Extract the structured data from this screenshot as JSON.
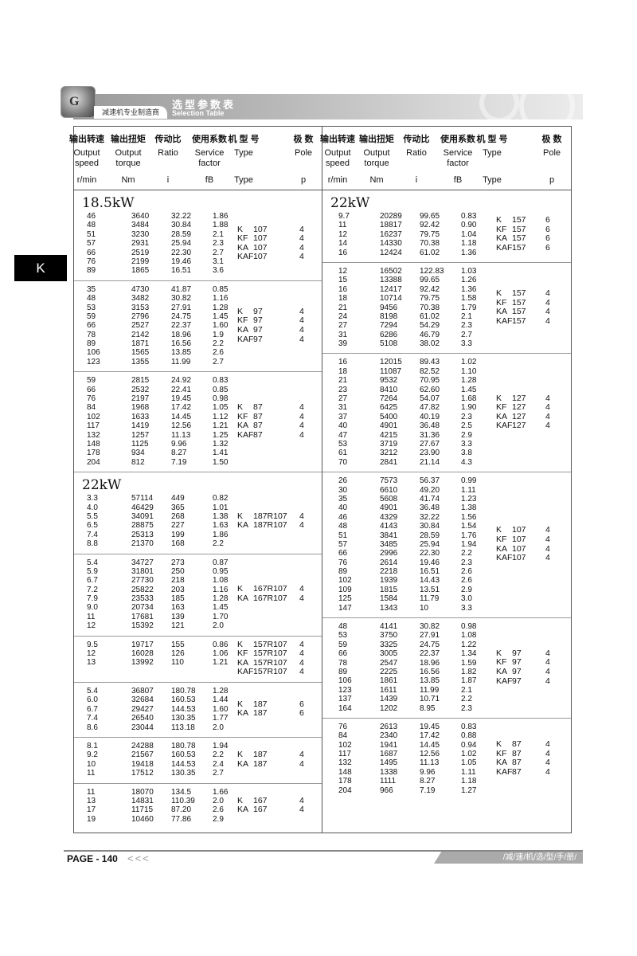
{
  "header": {
    "subtitle": "减速机专业制造商",
    "title_cn": "选型参数表",
    "title_en": "Selection Table",
    "logo_letter": "G"
  },
  "side_tab": "K",
  "columns": {
    "cn": [
      "输出转速",
      "输出扭矩",
      "传动比",
      "使用系数",
      "机 型 号",
      "极 数"
    ],
    "en": [
      "Output speed",
      "Output torque",
      "Ratio",
      "Service factor",
      "Type",
      "Pole"
    ],
    "units": [
      "r/min",
      "Nm",
      "i",
      "fB",
      "Type",
      "p"
    ]
  },
  "left": [
    {
      "title": "18.5kW",
      "rows": [
        [
          "46",
          "3640",
          "32.22",
          "1.86"
        ],
        [
          "48",
          "3484",
          "30.84",
          "1.88"
        ],
        [
          "51",
          "3230",
          "28.59",
          "2.1"
        ],
        [
          "57",
          "2931",
          "25.94",
          "2.3"
        ],
        [
          "66",
          "2519",
          "22.30",
          "2.7"
        ],
        [
          "76",
          "2199",
          "19.46",
          "3.1"
        ],
        [
          "89",
          "1865",
          "16.51",
          "3.6"
        ]
      ],
      "types": [
        [
          "K",
          "107",
          "4"
        ],
        [
          "KF",
          "107",
          "4"
        ],
        [
          "KA",
          "107",
          "4"
        ],
        [
          "KAF",
          "107",
          "4"
        ]
      ]
    },
    {
      "rows": [
        [
          "35",
          "4730",
          "41.87",
          "0.85"
        ],
        [
          "48",
          "3482",
          "30.82",
          "1.16"
        ],
        [
          "53",
          "3153",
          "27.91",
          "1.28"
        ],
        [
          "59",
          "2796",
          "24.75",
          "1.45"
        ],
        [
          "66",
          "2527",
          "22.37",
          "1.60"
        ],
        [
          "78",
          "2142",
          "18.96",
          "1.9"
        ],
        [
          "89",
          "1871",
          "16.56",
          "2.2"
        ],
        [
          "106",
          "1565",
          "13.85",
          "2.6"
        ],
        [
          "123",
          "1355",
          "11.99",
          "2.7"
        ]
      ],
      "types": [
        [
          "K",
          "97",
          "4"
        ],
        [
          "KF",
          "97",
          "4"
        ],
        [
          "KA",
          "97",
          "4"
        ],
        [
          "KAF",
          "97",
          "4"
        ]
      ]
    },
    {
      "rows": [
        [
          "59",
          "2815",
          "24.92",
          "0.83"
        ],
        [
          "66",
          "2532",
          "22.41",
          "0.85"
        ],
        [
          "76",
          "2197",
          "19.45",
          "0.98"
        ],
        [
          "84",
          "1968",
          "17.42",
          "1.05"
        ],
        [
          "102",
          "1633",
          "14.45",
          "1.12"
        ],
        [
          "117",
          "1419",
          "12.56",
          "1.21"
        ],
        [
          "132",
          "1257",
          "11.13",
          "1.25"
        ],
        [
          "148",
          "1125",
          "9.96",
          "1.32"
        ],
        [
          "178",
          "934",
          "8.27",
          "1.41"
        ],
        [
          "204",
          "812",
          "7.19",
          "1.50"
        ]
      ],
      "types": [
        [
          "K",
          "87",
          "4"
        ],
        [
          "KF",
          "87",
          "4"
        ],
        [
          "KA",
          "87",
          "4"
        ],
        [
          "KAF",
          "87",
          "4"
        ]
      ]
    },
    {
      "title": "22kW",
      "rows": [
        [
          "3.3",
          "57114",
          "449",
          "0.82"
        ],
        [
          "4.0",
          "46429",
          "365",
          "1.01"
        ],
        [
          "5.5",
          "34091",
          "268",
          "1.38"
        ],
        [
          "6.5",
          "28875",
          "227",
          "1.63"
        ],
        [
          "7.4",
          "25313",
          "199",
          "1.86"
        ],
        [
          "8.8",
          "21370",
          "168",
          "2.2"
        ]
      ],
      "types": [
        [
          "K",
          "187R107",
          "4"
        ],
        [
          "KA",
          "187R107",
          "4"
        ]
      ]
    },
    {
      "rows": [
        [
          "5.4",
          "34727",
          "273",
          "0.87"
        ],
        [
          "5.9",
          "31801",
          "250",
          "0.95"
        ],
        [
          "6.7",
          "27730",
          "218",
          "1.08"
        ],
        [
          "7.2",
          "25822",
          "203",
          "1.16"
        ],
        [
          "7.9",
          "23533",
          "185",
          "1.28"
        ],
        [
          "9.0",
          "20734",
          "163",
          "1.45"
        ],
        [
          "11",
          "17681",
          "139",
          "1.70"
        ],
        [
          "12",
          "15392",
          "121",
          "2.0"
        ]
      ],
      "types": [
        [
          "K",
          "167R107",
          "4"
        ],
        [
          "KA",
          "167R107",
          "4"
        ]
      ]
    },
    {
      "rows": [
        [
          "9.5",
          "19717",
          "155",
          "0.86"
        ],
        [
          "12",
          "16028",
          "126",
          "1.06"
        ],
        [
          "13",
          "13992",
          "110",
          "1.21"
        ]
      ],
      "types": [
        [
          "K",
          "157R107",
          "4"
        ],
        [
          "KF",
          "157R107",
          "4"
        ],
        [
          "KA",
          "157R107",
          "4"
        ],
        [
          "KAF",
          "157R107",
          "4"
        ]
      ]
    },
    {
      "rows": [
        [
          "5.4",
          "36807",
          "180.78",
          "1.28"
        ],
        [
          "6.0",
          "32684",
          "160.53",
          "1.44"
        ],
        [
          "6.7",
          "29427",
          "144.53",
          "1.60"
        ],
        [
          "7.4",
          "26540",
          "130.35",
          "1.77"
        ],
        [
          "8.6",
          "23044",
          "113.18",
          "2.0"
        ]
      ],
      "types": [
        [
          "K",
          "187",
          "6"
        ],
        [
          "KA",
          "187",
          "6"
        ]
      ]
    },
    {
      "rows": [
        [
          "8.1",
          "24288",
          "180.78",
          "1.94"
        ],
        [
          "9.2",
          "21567",
          "160.53",
          "2.2"
        ],
        [
          "10",
          "19418",
          "144.53",
          "2.4"
        ],
        [
          "11",
          "17512",
          "130.35",
          "2.7"
        ]
      ],
      "types": [
        [
          "K",
          "187",
          "4"
        ],
        [
          "KA",
          "187",
          "4"
        ]
      ]
    },
    {
      "rows": [
        [
          "11",
          "18070",
          "134.5",
          "1.66"
        ],
        [
          "13",
          "14831",
          "110.39",
          "2.0"
        ],
        [
          "17",
          "11715",
          "87.20",
          "2.6"
        ],
        [
          "19",
          "10460",
          "77.86",
          "2.9"
        ]
      ],
      "types": [
        [
          "K",
          "167",
          "4"
        ],
        [
          "KA",
          "167",
          "4"
        ]
      ]
    }
  ],
  "right": [
    {
      "title": "22kW",
      "rows": [
        [
          "9.7",
          "20289",
          "99.65",
          "0.83"
        ],
        [
          "11",
          "18817",
          "92.42",
          "0.90"
        ],
        [
          "12",
          "16237",
          "79.75",
          "1.04"
        ],
        [
          "14",
          "14330",
          "70.38",
          "1.18"
        ],
        [
          "16",
          "12424",
          "61.02",
          "1.36"
        ]
      ],
      "types": [
        [
          "K",
          "157",
          "6"
        ],
        [
          "KF",
          "157",
          "6"
        ],
        [
          "KA",
          "157",
          "6"
        ],
        [
          "KAF",
          "157",
          "6"
        ]
      ]
    },
    {
      "rows": [
        [
          "12",
          "16502",
          "122.83",
          "1.03"
        ],
        [
          "15",
          "13388",
          "99.65",
          "1.26"
        ],
        [
          "16",
          "12417",
          "92.42",
          "1.36"
        ],
        [
          "18",
          "10714",
          "79.75",
          "1.58"
        ],
        [
          "21",
          "9456",
          "70.38",
          "1.79"
        ],
        [
          "24",
          "8198",
          "61.02",
          "2.1"
        ],
        [
          "27",
          "7294",
          "54.29",
          "2.3"
        ],
        [
          "31",
          "6286",
          "46.79",
          "2.7"
        ],
        [
          "39",
          "5108",
          "38.02",
          "3.3"
        ]
      ],
      "types": [
        [
          "K",
          "157",
          "4"
        ],
        [
          "KF",
          "157",
          "4"
        ],
        [
          "KA",
          "157",
          "4"
        ],
        [
          "KAF",
          "157",
          "4"
        ]
      ]
    },
    {
      "rows": [
        [
          "16",
          "12015",
          "89.43",
          "1.02"
        ],
        [
          "18",
          "11087",
          "82.52",
          "1.10"
        ],
        [
          "21",
          "9532",
          "70.95",
          "1.28"
        ],
        [
          "23",
          "8410",
          "62.60",
          "1.45"
        ],
        [
          "27",
          "7264",
          "54.07",
          "1.68"
        ],
        [
          "31",
          "6425",
          "47.82",
          "1.90"
        ],
        [
          "37",
          "5400",
          "40.19",
          "2.3"
        ],
        [
          "40",
          "4901",
          "36.48",
          "2.5"
        ],
        [
          "47",
          "4215",
          "31.36",
          "2.9"
        ],
        [
          "53",
          "3719",
          "27.67",
          "3.3"
        ],
        [
          "61",
          "3212",
          "23.90",
          "3.8"
        ],
        [
          "70",
          "2841",
          "21.14",
          "4.3"
        ]
      ],
      "types": [
        [
          "K",
          "127",
          "4"
        ],
        [
          "KF",
          "127",
          "4"
        ],
        [
          "KA",
          "127",
          "4"
        ],
        [
          "KAF",
          "127",
          "4"
        ]
      ]
    },
    {
      "rows": [
        [
          "26",
          "7573",
          "56.37",
          "0.99"
        ],
        [
          "30",
          "6610",
          "49.20",
          "1.11"
        ],
        [
          "35",
          "5608",
          "41.74",
          "1.23"
        ],
        [
          "40",
          "4901",
          "36.48",
          "1.38"
        ],
        [
          "46",
          "4329",
          "32.22",
          "1.56"
        ],
        [
          "48",
          "4143",
          "30.84",
          "1.54"
        ],
        [
          "51",
          "3841",
          "28.59",
          "1.76"
        ],
        [
          "57",
          "3485",
          "25.94",
          "1.94"
        ],
        [
          "66",
          "2996",
          "22.30",
          "2.2"
        ],
        [
          "76",
          "2614",
          "19.46",
          "2.3"
        ],
        [
          "89",
          "2218",
          "16.51",
          "2.6"
        ],
        [
          "102",
          "1939",
          "14.43",
          "2.6"
        ],
        [
          "109",
          "1815",
          "13.51",
          "2.9"
        ],
        [
          "125",
          "1584",
          "11.79",
          "3.0"
        ],
        [
          "147",
          "1343",
          "10",
          "3.3"
        ]
      ],
      "types": [
        [
          "K",
          "107",
          "4"
        ],
        [
          "KF",
          "107",
          "4"
        ],
        [
          "KA",
          "107",
          "4"
        ],
        [
          "KAF",
          "107",
          "4"
        ]
      ]
    },
    {
      "rows": [
        [
          "48",
          "4141",
          "30.82",
          "0.98"
        ],
        [
          "53",
          "3750",
          "27.91",
          "1.08"
        ],
        [
          "59",
          "3325",
          "24.75",
          "1.22"
        ],
        [
          "66",
          "3005",
          "22.37",
          "1.34"
        ],
        [
          "78",
          "2547",
          "18.96",
          "1.59"
        ],
        [
          "89",
          "2225",
          "16.56",
          "1.82"
        ],
        [
          "106",
          "1861",
          "13.85",
          "1.87"
        ],
        [
          "123",
          "1611",
          "11.99",
          "2.1"
        ],
        [
          "137",
          "1439",
          "10.71",
          "2.2"
        ],
        [
          "164",
          "1202",
          "8.95",
          "2.3"
        ]
      ],
      "types": [
        [
          "K",
          "97",
          "4"
        ],
        [
          "KF",
          "97",
          "4"
        ],
        [
          "KA",
          "97",
          "4"
        ],
        [
          "KAF",
          "97",
          "4"
        ]
      ]
    },
    {
      "rows": [
        [
          "76",
          "2613",
          "19.45",
          "0.83"
        ],
        [
          "84",
          "2340",
          "17.42",
          "0.88"
        ],
        [
          "102",
          "1941",
          "14.45",
          "0.94"
        ],
        [
          "117",
          "1687",
          "12.56",
          "1.02"
        ],
        [
          "132",
          "1495",
          "11.13",
          "1.05"
        ],
        [
          "148",
          "1338",
          "9.96",
          "1.11"
        ],
        [
          "178",
          "1111",
          "8.27",
          "1.18"
        ],
        [
          "204",
          "966",
          "7.19",
          "1.27"
        ]
      ],
      "types": [
        [
          "K",
          "87",
          "4"
        ],
        [
          "KF",
          "87",
          "4"
        ],
        [
          "KA",
          "87",
          "4"
        ],
        [
          "KAF",
          "87",
          "4"
        ]
      ]
    }
  ],
  "footer": {
    "page": "PAGE - 140",
    "arrows": "<<<",
    "tag": "/减/速/机/选/型/手/册/"
  }
}
